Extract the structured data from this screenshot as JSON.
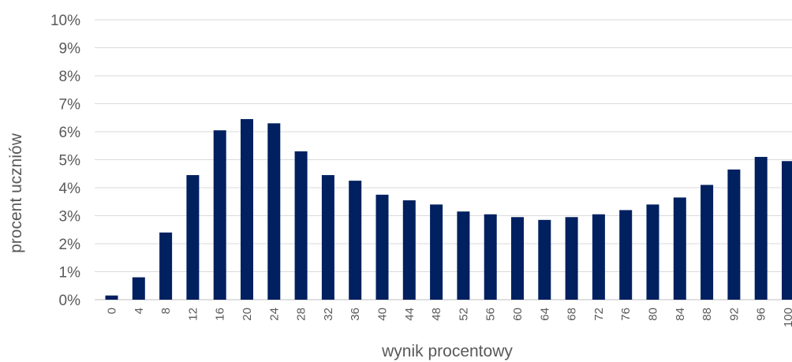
{
  "chart_data": {
    "type": "bar",
    "xlabel": "wynik procentowy",
    "ylabel": "procent uczniów",
    "ylim": [
      0,
      10
    ],
    "y_tick_labels": [
      "0%",
      "1%",
      "2%",
      "3%",
      "4%",
      "5%",
      "6%",
      "7%",
      "8%",
      "9%",
      "10%"
    ],
    "grid": true,
    "legend": "none",
    "bar_color": "#002060",
    "categories": [
      "0",
      "4",
      "8",
      "12",
      "16",
      "20",
      "24",
      "28",
      "32",
      "36",
      "40",
      "44",
      "48",
      "52",
      "56",
      "60",
      "64",
      "68",
      "72",
      "76",
      "80",
      "84",
      "88",
      "92",
      "96",
      "100"
    ],
    "values": [
      0.15,
      0.8,
      2.4,
      4.45,
      6.05,
      6.45,
      6.3,
      5.3,
      4.45,
      4.25,
      3.75,
      3.55,
      3.4,
      3.15,
      3.05,
      2.95,
      2.85,
      2.95,
      3.05,
      3.2,
      3.4,
      3.65,
      4.1,
      4.65,
      5.1,
      4.95
    ]
  }
}
